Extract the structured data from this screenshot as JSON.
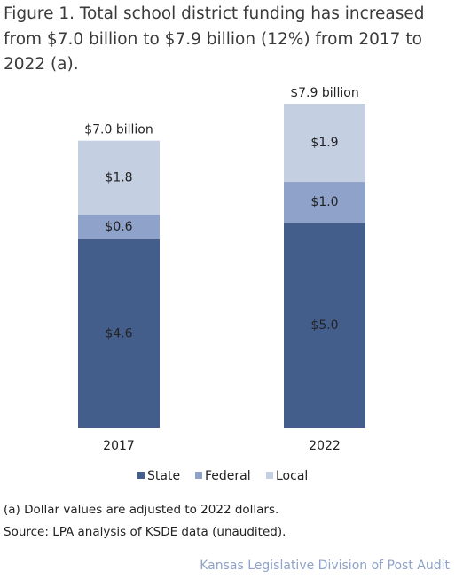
{
  "chart_data": {
    "type": "stacked_bar",
    "title": "Figure 1. Total school district funding has increased from $7.0 billion to $7.9 billion (12%) from 2017 to 2022 (a).",
    "categories": [
      "2017",
      "2022"
    ],
    "series": [
      {
        "name": "State",
        "color": "#445e8c",
        "values": [
          4.6,
          5.0
        ],
        "value_labels": [
          "$4.6",
          "$5.0"
        ]
      },
      {
        "name": "Federal",
        "color": "#8fa2c9",
        "values": [
          0.6,
          1.0
        ],
        "value_labels": [
          "$0.6",
          "$1.0"
        ]
      },
      {
        "name": "Local",
        "color": "#c5cfe2",
        "values": [
          1.8,
          1.9
        ],
        "value_labels": [
          "$1.8",
          "$1.9"
        ]
      }
    ],
    "totals": {
      "values": [
        7.0,
        7.9
      ],
      "value_labels": [
        "$7.0 billion",
        "$7.9 billion"
      ]
    },
    "legend": "bottom",
    "notes": [
      "(a) Dollar values are adjusted to 2022 dollars.",
      "Source: LPA analysis of KSDE data (unaudited)."
    ],
    "credit": "Kansas Legislative Division of Post Audit"
  }
}
